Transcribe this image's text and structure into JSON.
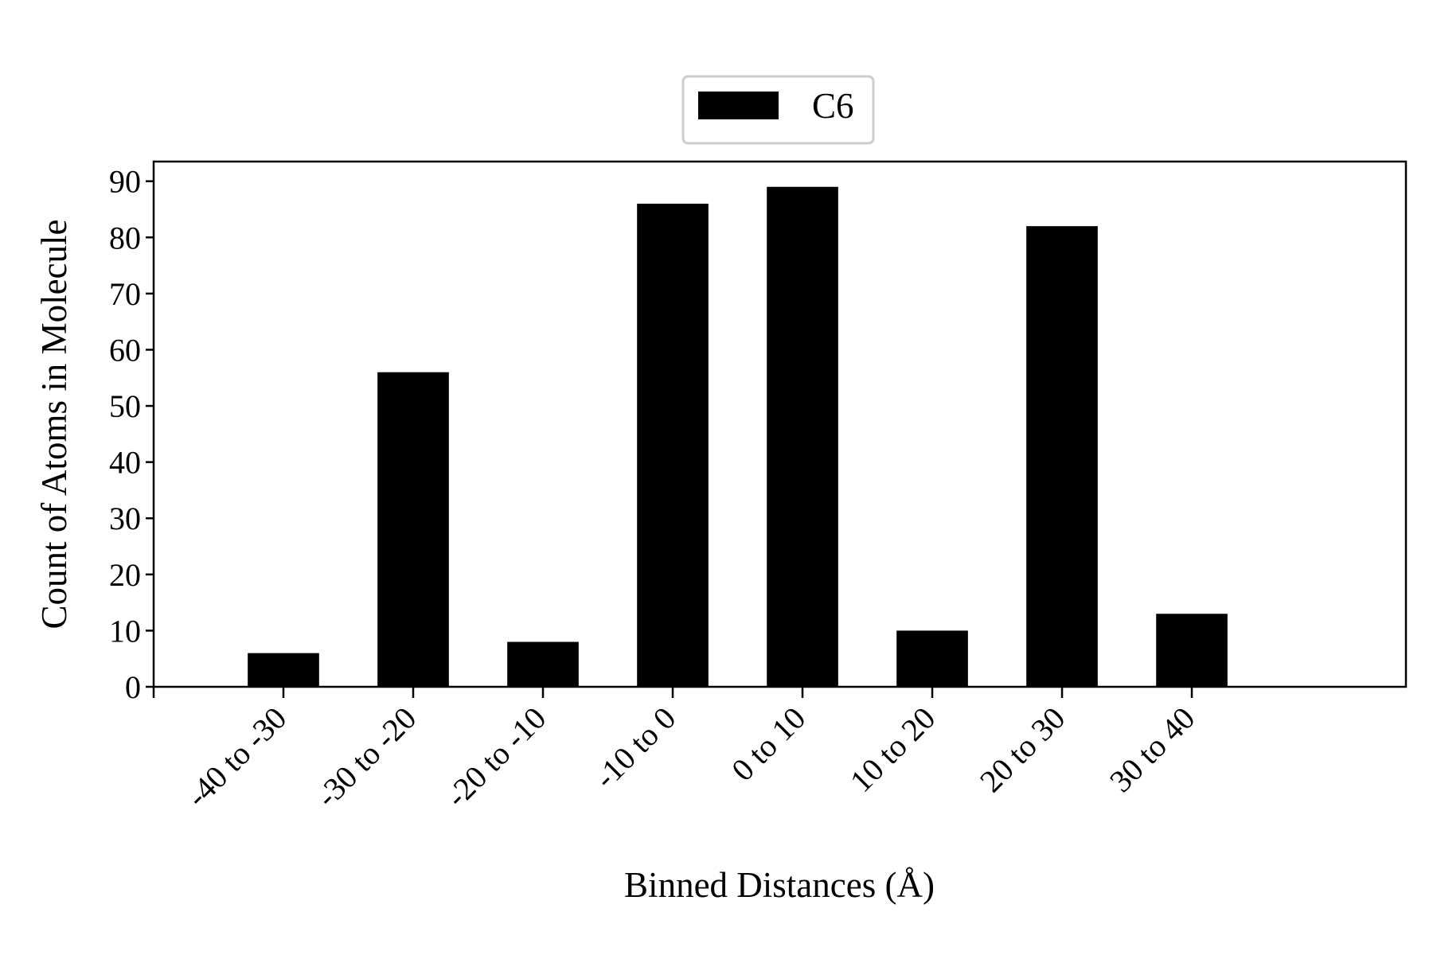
{
  "chart_data": {
    "type": "bar",
    "categories": [
      "-40 to -30",
      "-30 to -20",
      "-20 to -10",
      "-10 to 0",
      "0 to 10",
      "10 to 20",
      "20 to 30",
      "30 to 40"
    ],
    "series": [
      {
        "name": "C6",
        "values": [
          6,
          56,
          8,
          86,
          89,
          10,
          82,
          13
        ],
        "color": "#000000"
      }
    ],
    "xlabel": "Binned Distances (Å)",
    "ylabel": "Count of Atoms in Molecule",
    "ylim": [
      0,
      93.5
    ],
    "yticks": [
      0,
      10,
      20,
      30,
      40,
      50,
      60,
      70,
      80,
      90
    ],
    "xlim": [
      -1,
      8.65
    ],
    "grid": false,
    "legend_position": "top-center"
  }
}
